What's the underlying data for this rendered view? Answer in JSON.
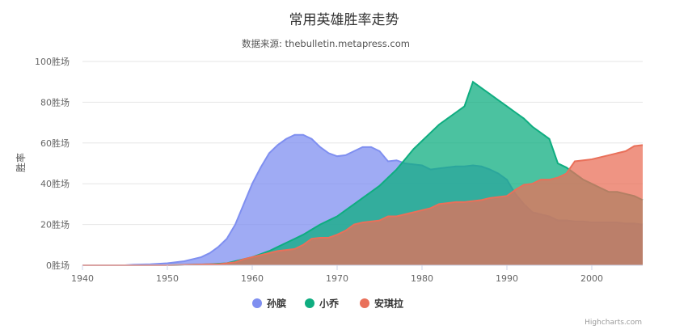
{
  "chart_data": {
    "type": "area",
    "title": "常用英雄胜率走势",
    "subtitle": "数据来源: thebulletin.metapress.com",
    "ylabel": "胜率",
    "ylim": [
      0,
      100
    ],
    "yticks": [
      0,
      20,
      40,
      60,
      80,
      100
    ],
    "ytick_suffix": "胜场",
    "xlim": [
      1940,
      2006
    ],
    "xticks": [
      1940,
      1950,
      1960,
      1970,
      1980,
      1990,
      2000
    ],
    "grid": "horizontal",
    "legend_position": "bottom-center",
    "credits": "Highcharts.com",
    "series": [
      {
        "name": "孙膑",
        "color": "#7f8ff0",
        "points": [
          [
            1940,
            0
          ],
          [
            1945,
            0
          ],
          [
            1946,
            0.3
          ],
          [
            1948,
            0.5
          ],
          [
            1950,
            1
          ],
          [
            1951,
            1.5
          ],
          [
            1952,
            2
          ],
          [
            1953,
            3
          ],
          [
            1954,
            4
          ],
          [
            1955,
            6
          ],
          [
            1956,
            9
          ],
          [
            1957,
            13
          ],
          [
            1958,
            20
          ],
          [
            1959,
            30
          ],
          [
            1960,
            40
          ],
          [
            1961,
            48
          ],
          [
            1962,
            55
          ],
          [
            1963,
            59
          ],
          [
            1964,
            62
          ],
          [
            1965,
            64
          ],
          [
            1966,
            64
          ],
          [
            1967,
            62
          ],
          [
            1968,
            58
          ],
          [
            1969,
            55
          ],
          [
            1970,
            53.5
          ],
          [
            1971,
            54
          ],
          [
            1972,
            56
          ],
          [
            1973,
            58
          ],
          [
            1974,
            58
          ],
          [
            1975,
            56
          ],
          [
            1976,
            51
          ],
          [
            1977,
            51.5
          ],
          [
            1978,
            50
          ],
          [
            1979,
            49.5
          ],
          [
            1980,
            49
          ],
          [
            1981,
            47
          ],
          [
            1982,
            47.5
          ],
          [
            1983,
            48
          ],
          [
            1984,
            48.5
          ],
          [
            1985,
            48.5
          ],
          [
            1986,
            49
          ],
          [
            1987,
            48.5
          ],
          [
            1988,
            47
          ],
          [
            1989,
            45
          ],
          [
            1990,
            42
          ],
          [
            1991,
            35
          ],
          [
            1992,
            30
          ],
          [
            1993,
            26
          ],
          [
            1994,
            25
          ],
          [
            1995,
            24
          ],
          [
            1996,
            22
          ],
          [
            1997,
            22
          ],
          [
            1998,
            21.5
          ],
          [
            1999,
            21.5
          ],
          [
            2000,
            21
          ],
          [
            2001,
            21
          ],
          [
            2002,
            21
          ],
          [
            2003,
            21
          ],
          [
            2004,
            20.5
          ],
          [
            2005,
            20.5
          ],
          [
            2006,
            20
          ]
        ]
      },
      {
        "name": "小乔",
        "color": "#0fad80",
        "points": [
          [
            1940,
            0
          ],
          [
            1950,
            0
          ],
          [
            1955,
            0.5
          ],
          [
            1957,
            1
          ],
          [
            1958,
            2
          ],
          [
            1959,
            3
          ],
          [
            1960,
            4
          ],
          [
            1961,
            5.5
          ],
          [
            1962,
            7
          ],
          [
            1963,
            9
          ],
          [
            1964,
            11
          ],
          [
            1965,
            13
          ],
          [
            1966,
            15
          ],
          [
            1967,
            17.5
          ],
          [
            1968,
            20
          ],
          [
            1969,
            22
          ],
          [
            1970,
            24
          ],
          [
            1971,
            27
          ],
          [
            1972,
            30
          ],
          [
            1973,
            33
          ],
          [
            1974,
            36
          ],
          [
            1975,
            39
          ],
          [
            1976,
            43
          ],
          [
            1977,
            47
          ],
          [
            1978,
            52
          ],
          [
            1979,
            57
          ],
          [
            1980,
            61
          ],
          [
            1981,
            65
          ],
          [
            1982,
            69
          ],
          [
            1983,
            72
          ],
          [
            1984,
            75
          ],
          [
            1985,
            78
          ],
          [
            1986,
            90
          ],
          [
            1987,
            87
          ],
          [
            1988,
            84
          ],
          [
            1989,
            81
          ],
          [
            1990,
            78
          ],
          [
            1991,
            75
          ],
          [
            1992,
            72
          ],
          [
            1993,
            68
          ],
          [
            1994,
            65
          ],
          [
            1995,
            62
          ],
          [
            1996,
            50
          ],
          [
            1997,
            48
          ],
          [
            1998,
            45
          ],
          [
            1999,
            42
          ],
          [
            2000,
            40
          ],
          [
            2001,
            38
          ],
          [
            2002,
            36
          ],
          [
            2003,
            36
          ],
          [
            2004,
            35
          ],
          [
            2005,
            34
          ],
          [
            2006,
            32
          ]
        ]
      },
      {
        "name": "安琪拉",
        "color": "#e9705a",
        "points": [
          [
            1940,
            0
          ],
          [
            1950,
            0
          ],
          [
            1955,
            0.5
          ],
          [
            1956,
            0.5
          ],
          [
            1957,
            1
          ],
          [
            1958,
            1.5
          ],
          [
            1959,
            3
          ],
          [
            1960,
            4
          ],
          [
            1961,
            5
          ],
          [
            1962,
            6
          ],
          [
            1963,
            7
          ],
          [
            1964,
            7.5
          ],
          [
            1965,
            8
          ],
          [
            1966,
            10
          ],
          [
            1967,
            13
          ],
          [
            1968,
            13.5
          ],
          [
            1969,
            13.5
          ],
          [
            1970,
            15
          ],
          [
            1971,
            17
          ],
          [
            1972,
            20
          ],
          [
            1973,
            21
          ],
          [
            1974,
            21.5
          ],
          [
            1975,
            22
          ],
          [
            1976,
            24
          ],
          [
            1977,
            24
          ],
          [
            1978,
            25
          ],
          [
            1979,
            26
          ],
          [
            1980,
            27
          ],
          [
            1981,
            28
          ],
          [
            1982,
            30
          ],
          [
            1983,
            30.5
          ],
          [
            1984,
            31
          ],
          [
            1985,
            31
          ],
          [
            1986,
            31.5
          ],
          [
            1987,
            32
          ],
          [
            1988,
            33
          ],
          [
            1989,
            33.5
          ],
          [
            1990,
            34
          ],
          [
            1991,
            37
          ],
          [
            1992,
            39.5
          ],
          [
            1993,
            40
          ],
          [
            1994,
            42
          ],
          [
            1995,
            42
          ],
          [
            1996,
            43
          ],
          [
            1997,
            45
          ],
          [
            1998,
            51
          ],
          [
            1999,
            51.5
          ],
          [
            2000,
            52
          ],
          [
            2001,
            53
          ],
          [
            2002,
            54
          ],
          [
            2003,
            55
          ],
          [
            2004,
            56
          ],
          [
            2005,
            58.5
          ],
          [
            2006,
            59
          ]
        ]
      }
    ]
  }
}
